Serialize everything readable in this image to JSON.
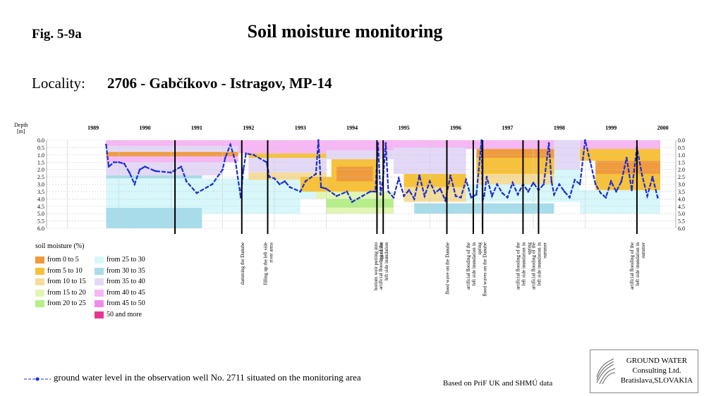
{
  "header": {
    "fig_label": "Fig. 5-9a",
    "title": "Soil moisture monitoring",
    "locality_label": "Locality:",
    "locality_value": "2706 - Gabčíkovo - Istragov, MP-14"
  },
  "chart_data": {
    "type": "heatmap",
    "ylabel": "Depth\n[m]",
    "y_axis_inverted": true,
    "ylim": [
      0.0,
      6.0
    ],
    "y_ticks": [
      "0.0",
      "0.5",
      "1.0",
      "1.5",
      "2.0",
      "2.5",
      "3.0",
      "3.5",
      "4.0",
      "4.5",
      "5.0",
      "5.5",
      "6.0"
    ],
    "x_years": [
      "1989",
      "1990",
      "1991",
      "1992",
      "1993",
      "1994",
      "1995",
      "1996",
      "1997",
      "1998",
      "1999",
      "2000"
    ],
    "grid": true,
    "moisture_classes": [
      {
        "label": "from 0 to 5",
        "color": "#ef9a3c"
      },
      {
        "label": "from 5 to 10",
        "color": "#f7c23a"
      },
      {
        "label": "from 10 to 15",
        "color": "#f5dc99"
      },
      {
        "label": "from 15 to 20",
        "color": "#e1f5b4"
      },
      {
        "label": "from 20 to 25",
        "color": "#b6ee8a"
      },
      {
        "label": "from 25 to 30",
        "color": "#d7f7fb"
      },
      {
        "label": "from 30 to 35",
        "color": "#a7dcea"
      },
      {
        "label": "from 35 to 40",
        "color": "#e3d9f7"
      },
      {
        "label": "from 40 to 45",
        "color": "#f6b7f4"
      },
      {
        "label": "from 45 to 50",
        "color": "#f28be8"
      },
      {
        "label": "50 and more",
        "color": "#e4388f"
      }
    ],
    "layers": [
      {
        "x0": 1989.75,
        "x1": 1991.6,
        "d0": 4.6,
        "d1": 6.0,
        "class": 6
      },
      {
        "x0": 1989.75,
        "x1": 1991.6,
        "d0": 2.4,
        "d1": 4.6,
        "class": 5
      },
      {
        "x0": 1991.6,
        "x1": 1993.5,
        "d0": 2.6,
        "d1": 5.0,
        "class": 5
      },
      {
        "x0": 1993.5,
        "x1": 1994.0,
        "d0": 2.6,
        "d1": 4.0,
        "class": 5
      },
      {
        "x0": 1989.75,
        "x1": 1991.6,
        "d0": 2.4,
        "d1": 2.6,
        "class": 6
      },
      {
        "x0": 1989.75,
        "x1": 1992.5,
        "d0": 0.0,
        "d1": 0.4,
        "class": 8
      },
      {
        "x0": 1989.75,
        "x1": 1992.5,
        "d0": 0.4,
        "d1": 0.8,
        "class": 7
      },
      {
        "x0": 1989.75,
        "x1": 1992.3,
        "d0": 0.8,
        "d1": 1.1,
        "class": 0
      },
      {
        "x0": 1989.75,
        "x1": 1992.3,
        "d0": 1.1,
        "d1": 1.5,
        "class": 8
      },
      {
        "x0": 1989.75,
        "x1": 1992.0,
        "d0": 1.5,
        "d1": 2.4,
        "class": 7
      },
      {
        "x0": 1992.3,
        "x1": 1994.0,
        "d0": 0.0,
        "d1": 0.9,
        "class": 8
      },
      {
        "x0": 1992.5,
        "x1": 1994.0,
        "d0": 0.9,
        "d1": 1.2,
        "class": 1
      },
      {
        "x0": 1992.5,
        "x1": 1994.0,
        "d0": 1.2,
        "d1": 2.2,
        "class": 7
      },
      {
        "x0": 1992.5,
        "x1": 1994.0,
        "d0": 2.2,
        "d1": 2.7,
        "class": 2
      },
      {
        "x0": 1993.5,
        "x1": 1994.2,
        "d0": 2.5,
        "d1": 3.5,
        "class": 1
      },
      {
        "x0": 1994.0,
        "x1": 1995.3,
        "d0": 0.0,
        "d1": 0.7,
        "class": 8
      },
      {
        "x0": 1994.0,
        "x1": 1995.3,
        "d0": 0.7,
        "d1": 1.3,
        "class": 7
      },
      {
        "x0": 1994.1,
        "x1": 1995.0,
        "d0": 1.3,
        "d1": 3.5,
        "class": 1
      },
      {
        "x0": 1994.2,
        "x1": 1994.9,
        "d0": 1.8,
        "d1": 2.8,
        "class": 0
      },
      {
        "x0": 1993.8,
        "x1": 1995.3,
        "d0": 3.5,
        "d1": 4.0,
        "class": 3
      },
      {
        "x0": 1994.0,
        "x1": 1995.3,
        "d0": 4.0,
        "d1": 4.6,
        "class": 4
      },
      {
        "x0": 1994.0,
        "x1": 1995.3,
        "d0": 4.6,
        "d1": 5.0,
        "class": 3
      },
      {
        "x0": 1995.3,
        "x1": 1996.7,
        "d0": 0.0,
        "d1": 0.5,
        "class": 8
      },
      {
        "x0": 1995.3,
        "x1": 1996.7,
        "d0": 0.5,
        "d1": 1.0,
        "class": 7
      },
      {
        "x0": 1995.3,
        "x1": 1996.7,
        "d0": 1.0,
        "d1": 2.3,
        "class": 7
      },
      {
        "x0": 1995.5,
        "x1": 1996.7,
        "d0": 2.3,
        "d1": 3.2,
        "class": 1
      },
      {
        "x0": 1995.5,
        "x1": 1996.7,
        "d0": 3.2,
        "d1": 4.2,
        "class": 2
      },
      {
        "x0": 1995.7,
        "x1": 1998.4,
        "d0": 4.3,
        "d1": 5.0,
        "class": 6
      },
      {
        "x0": 1996.7,
        "x1": 1998.4,
        "d0": 0.0,
        "d1": 0.6,
        "class": 8
      },
      {
        "x0": 1996.9,
        "x1": 1998.4,
        "d0": 0.6,
        "d1": 1.2,
        "class": 0
      },
      {
        "x0": 1996.9,
        "x1": 1998.4,
        "d0": 1.2,
        "d1": 2.3,
        "class": 1
      },
      {
        "x0": 1996.9,
        "x1": 1998.4,
        "d0": 2.3,
        "d1": 3.0,
        "class": 2
      },
      {
        "x0": 1996.7,
        "x1": 1998.4,
        "d0": 3.0,
        "d1": 4.2,
        "class": 5
      },
      {
        "x0": 1998.4,
        "x1": 1998.9,
        "d0": 0.0,
        "d1": 2.0,
        "class": 7
      },
      {
        "x0": 1998.4,
        "x1": 1998.9,
        "d0": 2.0,
        "d1": 4.2,
        "class": 5
      },
      {
        "x0": 1998.9,
        "x1": 2000.45,
        "d0": 0.0,
        "d1": 0.6,
        "class": 8
      },
      {
        "x0": 1998.9,
        "x1": 2000.45,
        "d0": 0.6,
        "d1": 1.4,
        "class": 1
      },
      {
        "x0": 1999.2,
        "x1": 2000.45,
        "d0": 1.4,
        "d1": 2.3,
        "class": 0
      },
      {
        "x0": 1999.2,
        "x1": 2000.45,
        "d0": 2.3,
        "d1": 3.4,
        "class": 1
      },
      {
        "x0": 1998.9,
        "x1": 2000.45,
        "d0": 3.4,
        "d1": 5.0,
        "class": 5
      }
    ],
    "ground_water_level": {
      "name": "ground water level in the observation well No. 2711 situated on the monitoring area",
      "color": "#1c2fd0",
      "x": [
        1989.75,
        1989.8,
        1989.9,
        1990.0,
        1990.1,
        1990.2,
        1990.3,
        1990.4,
        1990.5,
        1990.7,
        1991.0,
        1991.2,
        1991.3,
        1991.5,
        1991.8,
        1992.0,
        1992.05,
        1992.15,
        1992.25,
        1992.35,
        1992.4,
        1992.45,
        1992.6,
        1992.85,
        1992.9,
        1993.0,
        1993.1,
        1993.2,
        1993.3,
        1993.5,
        1993.6,
        1993.8,
        1993.85,
        1993.9,
        1994.0,
        1994.2,
        1994.4,
        1994.5,
        1994.7,
        1994.85,
        1994.95,
        1995.0,
        1995.05,
        1995.1,
        1995.15,
        1995.2,
        1995.3,
        1995.4,
        1995.5,
        1995.6,
        1995.7,
        1995.8,
        1995.9,
        1996.0,
        1996.1,
        1996.2,
        1996.3,
        1996.4,
        1996.5,
        1996.6,
        1996.7,
        1996.8,
        1996.9,
        1997.0,
        1997.02,
        1997.05,
        1997.1,
        1997.2,
        1997.3,
        1997.4,
        1997.5,
        1997.6,
        1997.7,
        1997.8,
        1997.9,
        1998.0,
        1998.1,
        1998.2,
        1998.3,
        1998.35,
        1998.4,
        1998.5,
        1998.6,
        1998.7,
        1998.8,
        1998.9,
        1999.0,
        1999.1,
        1999.2,
        1999.3,
        1999.4,
        1999.5,
        1999.6,
        1999.7,
        1999.8,
        1999.9,
        2000.0,
        2000.1,
        2000.2,
        2000.3,
        2000.4
      ],
      "depth": [
        0.3,
        1.8,
        1.5,
        1.5,
        1.6,
        2.2,
        3.0,
        2.0,
        1.8,
        2.1,
        2.2,
        1.8,
        2.8,
        3.6,
        3.0,
        2.0,
        1.2,
        0.3,
        1.5,
        3.9,
        2.0,
        0.9,
        1.0,
        1.5,
        2.5,
        2.6,
        3.0,
        2.8,
        3.2,
        3.5,
        2.8,
        2.3,
        0.0,
        3.2,
        3.3,
        3.8,
        3.5,
        4.2,
        3.8,
        3.5,
        3.5,
        0.2,
        3.7,
        2.5,
        0.2,
        3.5,
        3.9,
        2.6,
        3.8,
        3.4,
        4.0,
        2.4,
        3.8,
        2.8,
        3.6,
        3.3,
        4.1,
        2.4,
        3.8,
        3.9,
        2.7,
        3.9,
        3.7,
        0.0,
        4.1,
        3.8,
        2.5,
        3.8,
        3.0,
        3.6,
        3.9,
        2.9,
        3.7,
        3.0,
        3.5,
        2.9,
        3.4,
        3.0,
        0.2,
        2.8,
        3.7,
        3.0,
        3.5,
        3.9,
        2.7,
        3.0,
        0.0,
        1.5,
        3.0,
        3.6,
        3.9,
        2.8,
        3.5,
        2.8,
        1.2,
        3.4,
        0.5,
        2.4,
        3.8,
        2.5,
        3.9
      ]
    },
    "events": [
      {
        "x": 1991.08,
        "label": "damming the Danube",
        "label_x": 1992.37
      },
      {
        "x": 1992.37,
        "label": "filling up the left side river arms",
        "label_x": 1992.87
      },
      {
        "x": 1992.87,
        "label": "bottom weir putting into operation",
        "label_x": 1995.0
      },
      {
        "x": 1994.98,
        "label": "artificial flooding of the left side inundation",
        "label_x": 1995.1
      },
      {
        "x": 1995.1,
        "label": "",
        "label_x": null
      },
      {
        "x": 1996.33,
        "label": "flood wave on the Danube",
        "label_x": 1996.33
      },
      {
        "x": 1996.84,
        "label": "artificial flooding of the left side inundation in spring",
        "label_x": 1996.84
      },
      {
        "x": 1997.02,
        "label": "flood waves on the Danube",
        "label_x": 1997.05
      },
      {
        "x": 1997.8,
        "label": "artificial flooding of the left side inundation in spring",
        "label_x": 1997.8
      },
      {
        "x": 1998.1,
        "label": "artificial flooding of the left side inundation in summer",
        "label_x": 1998.1
      },
      {
        "x": 2000.0,
        "label": "artificial flooding of the left side inundation in summer",
        "label_x": 2000.0
      }
    ]
  },
  "legend": {
    "title": "soil moisture (%)"
  },
  "footer": {
    "gwl_label": "ground water level in the observation well No. 2711 situated on the monitoring area",
    "source": "Based on PriF UK and SHMÚ data",
    "logo_line1": "GROUND WATER",
    "logo_line2": "Consulting Ltd.",
    "logo_line3": "Bratislava,SLOVAKIA"
  }
}
